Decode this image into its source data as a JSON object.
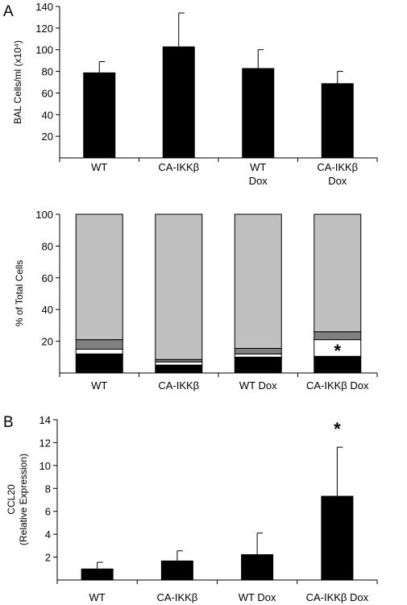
{
  "figure": {
    "panel_labels": [
      "A",
      "B"
    ]
  },
  "chart_data": [
    {
      "type": "bar",
      "panel": "A",
      "categories": [
        "WT",
        "CA-IKKβ",
        "WT\nDox",
        "CA-IKKβ\nDox"
      ],
      "values": [
        79,
        103,
        83,
        69
      ],
      "errors": [
        10,
        31,
        17,
        11
      ],
      "ylabel": "BAL Cells/ml (x10⁴)",
      "xlabel": "",
      "ylim": [
        0,
        140
      ],
      "yticks": [
        20,
        40,
        60,
        80,
        100,
        120,
        140
      ],
      "bar_color": "#000000"
    },
    {
      "type": "bar",
      "stacked": true,
      "categories": [
        "WT",
        "CA-IKKβ",
        "WT Dox",
        "CA-IKKβ Dox"
      ],
      "ylabel": "% of Total Cells",
      "xlabel": "",
      "ylim": [
        0,
        100
      ],
      "yticks": [
        20,
        40,
        60,
        80,
        100
      ],
      "series": [
        {
          "values": [
            12,
            5,
            10,
            10.5
          ],
          "color": "#000000"
        },
        {
          "values": [
            3,
            2,
            2,
            10.5
          ],
          "color": "#ffffff"
        },
        {
          "values": [
            6,
            1.5,
            3.5,
            5
          ],
          "color": "#808080"
        },
        {
          "values": [
            79,
            91.5,
            84.5,
            74
          ],
          "color": "#c0c0c0"
        }
      ],
      "annotations": [
        {
          "category": 3,
          "text": "*"
        }
      ]
    },
    {
      "type": "bar",
      "panel": "B",
      "categories": [
        "WT",
        "CA-IKKβ",
        "WT Dox",
        "CA-IKKβ Dox"
      ],
      "values": [
        1.0,
        1.7,
        2.25,
        7.35
      ],
      "errors": [
        0.55,
        0.85,
        1.85,
        4.25
      ],
      "ylabel": [
        "CCL20",
        "(Relative Expression)"
      ],
      "xlabel": "",
      "ylim": [
        0,
        14
      ],
      "yticks": [
        2,
        4,
        6,
        8,
        10,
        12,
        14
      ],
      "bar_color": "#000000",
      "annotations": [
        {
          "category": 3,
          "text": "*"
        }
      ]
    }
  ]
}
